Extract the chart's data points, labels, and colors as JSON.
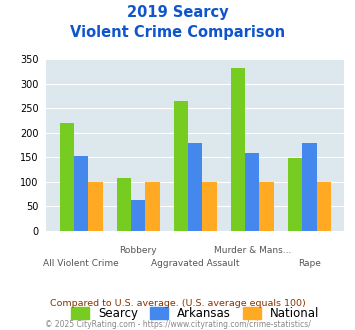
{
  "title_line1": "2019 Searcy",
  "title_line2": "Violent Crime Comparison",
  "categories_top": [
    "",
    "Robbery",
    "",
    "Murder & Mans...",
    ""
  ],
  "categories_bottom": [
    "All Violent Crime",
    "",
    "Aggravated Assault",
    "",
    "Rape"
  ],
  "searcy": [
    220,
    108,
    265,
    333,
    149
  ],
  "arkansas": [
    152,
    63,
    180,
    160,
    180
  ],
  "national": [
    100,
    100,
    100,
    100,
    100
  ],
  "color_searcy": "#77cc22",
  "color_arkansas": "#4488ee",
  "color_national": "#ffaa22",
  "color_title": "#1155cc",
  "color_bg": "#dde8ee",
  "ylim": [
    0,
    350
  ],
  "yticks": [
    0,
    50,
    100,
    150,
    200,
    250,
    300,
    350
  ],
  "legend_labels": [
    "Searcy",
    "Arkansas",
    "National"
  ],
  "footer1": "Compared to U.S. average. (U.S. average equals 100)",
  "footer2": "© 2025 CityRating.com - https://www.cityrating.com/crime-statistics/",
  "color_footer1": "#883300",
  "color_footer2": "#888888",
  "bar_width": 0.25
}
